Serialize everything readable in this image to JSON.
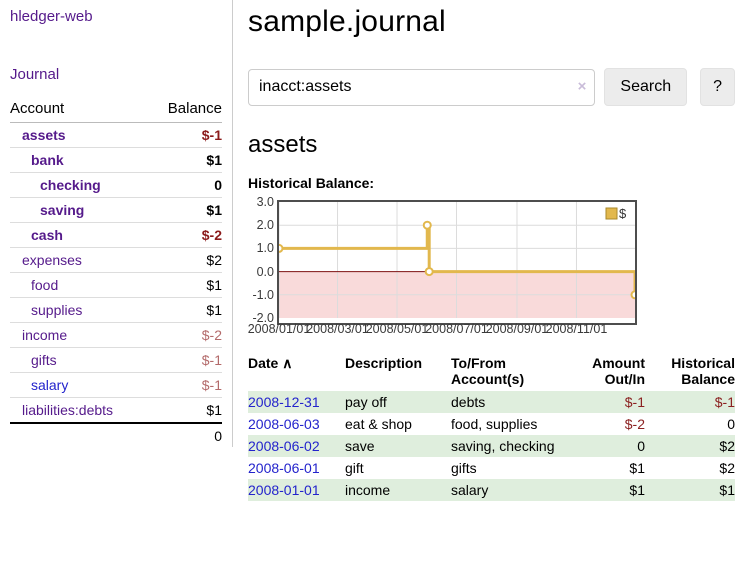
{
  "app": {
    "title": "hledger-web"
  },
  "sidebar": {
    "journal_link": "Journal",
    "table": {
      "headers": {
        "account": "Account",
        "balance": "Balance"
      },
      "rows": [
        {
          "name": "assets",
          "balance": "$-1"
        },
        {
          "name": "bank",
          "balance": "$1"
        },
        {
          "name": "checking",
          "balance": "0"
        },
        {
          "name": "saving",
          "balance": "$1"
        },
        {
          "name": "cash",
          "balance": "$-2"
        },
        {
          "name": "expenses",
          "balance": "$2"
        },
        {
          "name": "food",
          "balance": "$1"
        },
        {
          "name": "supplies",
          "balance": "$1"
        },
        {
          "name": "income",
          "balance": "$-2"
        },
        {
          "name": "gifts",
          "balance": "$-1"
        },
        {
          "name": "salary",
          "balance": "$-1"
        },
        {
          "name": "liabilities:debts",
          "balance": "$1"
        }
      ],
      "total": "0"
    }
  },
  "main": {
    "title": "sample.journal",
    "search": {
      "value": "inacct:assets",
      "clear_icon": "×",
      "button": "Search",
      "help_button": "?"
    },
    "account_heading": "assets"
  },
  "chart_data": {
    "type": "line",
    "title": "Historical Balance:",
    "step": true,
    "series": [
      {
        "name": "$",
        "points": [
          [
            "2008-01-01",
            1
          ],
          [
            "2008-06-01",
            2
          ],
          [
            "2008-06-03",
            0
          ],
          [
            "2008-12-31",
            -1
          ]
        ]
      }
    ],
    "x_range": [
      "2008/01/01",
      "2008/12/31"
    ],
    "xticks": [
      "2008/01/01",
      "2008/03/01",
      "2008/05/01",
      "2008/07/01",
      "2008/09/01",
      "2008/11/01"
    ],
    "yticks": [
      3.0,
      2.0,
      1.0,
      0.0,
      -1.0,
      -2.0
    ],
    "ylim": [
      -2,
      3
    ],
    "legend": "$",
    "legend_position": "top-right",
    "line_color": "#e2b84d",
    "marker_fill": "#ffffff",
    "negative_fill": "#f9dada",
    "zero_line_color": "#7e1010",
    "grid_color": "#dcdcdc",
    "border_color": "#4d4d4d",
    "legend_border": "#a9882a"
  },
  "register_table": {
    "headers": {
      "date": "Date",
      "sort_indicator": "∧",
      "description": "Description",
      "accounts": "To/From Account(s)",
      "amount": "Amount Out/In",
      "balance": "Historical Balance"
    },
    "rows": [
      {
        "date": "2008-12-31",
        "description": "pay off",
        "accounts": "debts",
        "amount": "$-1",
        "balance": "$-1"
      },
      {
        "date": "2008-06-03",
        "description": "eat & shop",
        "accounts": "food, supplies",
        "amount": "$-2",
        "balance": "0"
      },
      {
        "date": "2008-06-02",
        "description": "save",
        "accounts": "saving, checking",
        "amount": "0",
        "balance": "$2"
      },
      {
        "date": "2008-06-01",
        "description": "gift",
        "accounts": "gifts",
        "amount": "$1",
        "balance": "$2"
      },
      {
        "date": "2008-01-01",
        "description": "income",
        "accounts": "salary",
        "amount": "$1",
        "balance": "$1"
      }
    ]
  }
}
